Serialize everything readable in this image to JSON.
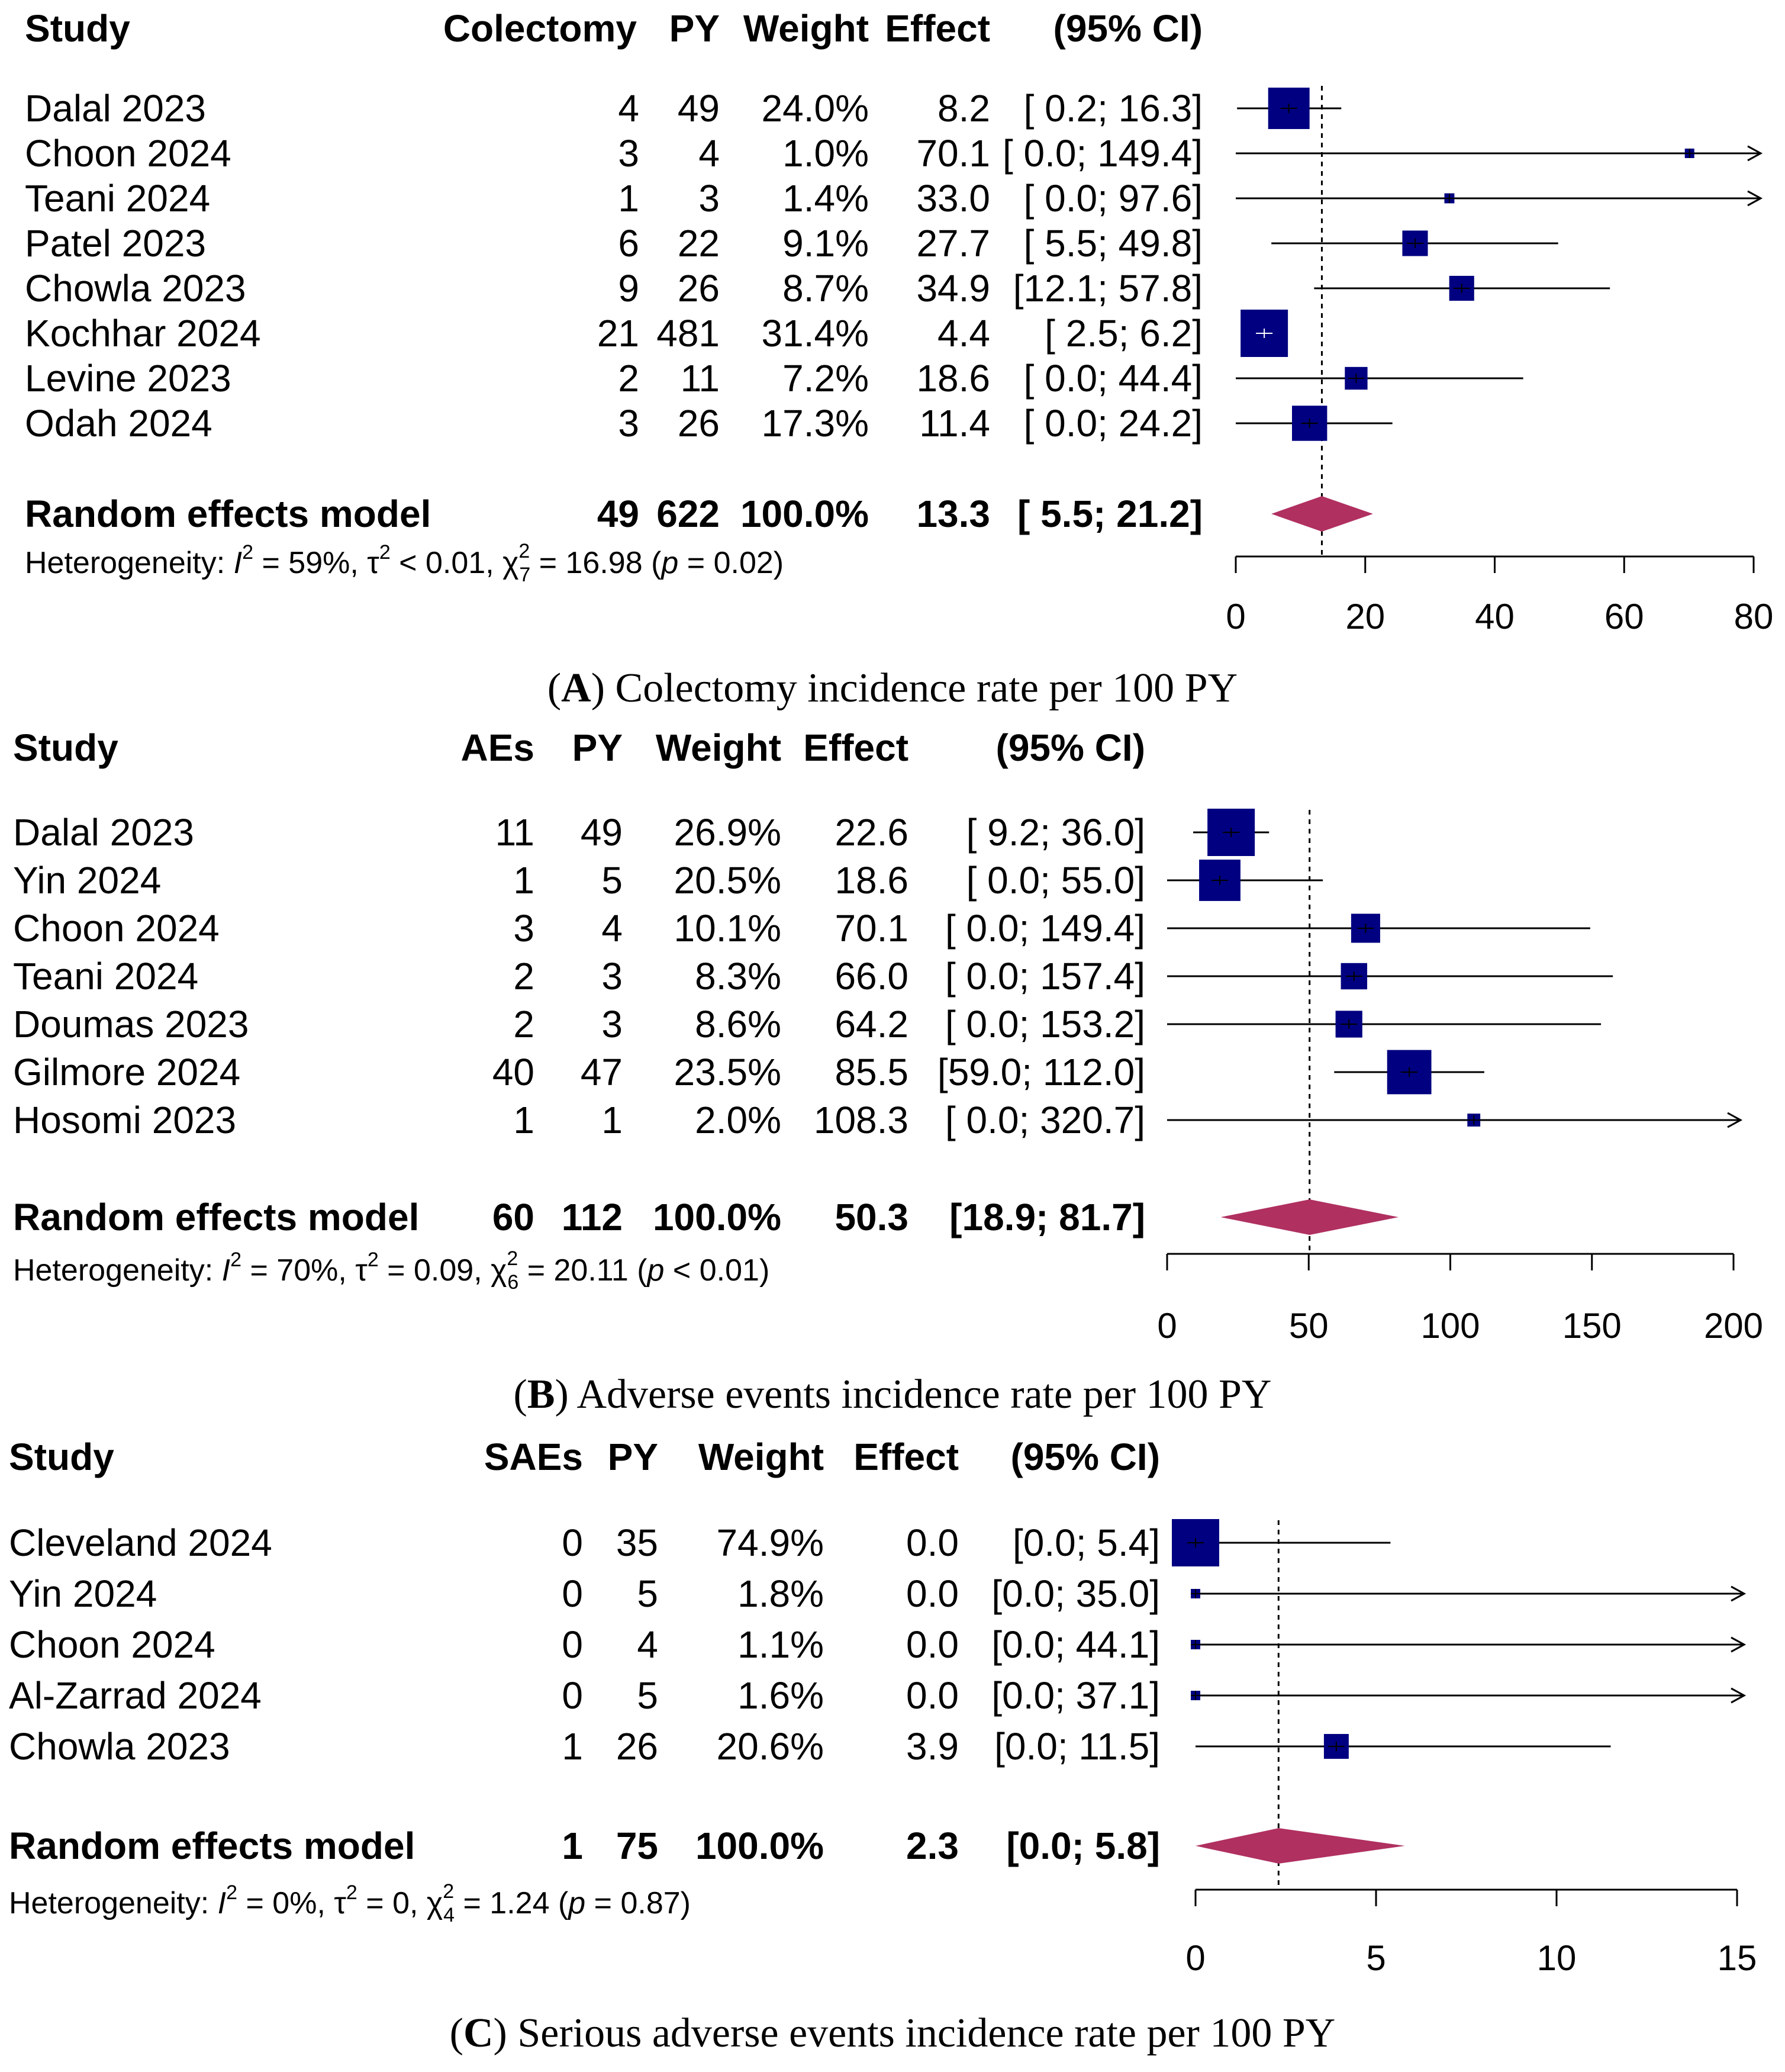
{
  "chart_data": [
    {
      "type": "forest",
      "panel_letter": "A",
      "caption": "Colectomy incidence rate per 100 PY",
      "columns": [
        "Study",
        "Colectomy",
        "PY",
        "Weight",
        "Effect",
        "(95% CI)"
      ],
      "studies": [
        {
          "study": "Dalal 2023",
          "events": "4",
          "py": "49",
          "weight": "24.0%",
          "effect": "8.2",
          "ci": "[ 0.2;  16.3]",
          "est": 8.2,
          "lo": 0.2,
          "hi": 16.3,
          "w": 24.0
        },
        {
          "study": "Choon 2024",
          "events": "3",
          "py": "4",
          "weight": "1.0%",
          "effect": "70.1",
          "ci": "[ 0.0; 149.4]",
          "est": 70.1,
          "lo": 0.0,
          "hi": 149.4,
          "w": 1.0
        },
        {
          "study": "Teani 2024",
          "events": "1",
          "py": "3",
          "weight": "1.4%",
          "effect": "33.0",
          "ci": "[ 0.0;  97.6]",
          "est": 33.0,
          "lo": 0.0,
          "hi": 97.6,
          "w": 1.4
        },
        {
          "study": "Patel 2023",
          "events": "6",
          "py": "22",
          "weight": "9.1%",
          "effect": "27.7",
          "ci": "[ 5.5;  49.8]",
          "est": 27.7,
          "lo": 5.5,
          "hi": 49.8,
          "w": 9.1
        },
        {
          "study": "Chowla 2023",
          "events": "9",
          "py": "26",
          "weight": "8.7%",
          "effect": "34.9",
          "ci": "[12.1;  57.8]",
          "est": 34.9,
          "lo": 12.1,
          "hi": 57.8,
          "w": 8.7
        },
        {
          "study": "Kochhar 2024",
          "events": "21",
          "py": "481",
          "weight": "31.4%",
          "effect": "4.4",
          "ci": "[ 2.5;   6.2]",
          "est": 4.4,
          "lo": 2.5,
          "hi": 6.2,
          "w": 31.4
        },
        {
          "study": "Levine 2023",
          "events": "2",
          "py": "11",
          "weight": "7.2%",
          "effect": "18.6",
          "ci": "[ 0.0;  44.4]",
          "est": 18.6,
          "lo": 0.0,
          "hi": 44.4,
          "w": 7.2
        },
        {
          "study": "Odah 2024",
          "events": "3",
          "py": "26",
          "weight": "17.3%",
          "effect": "11.4",
          "ci": "[ 0.0;  24.2]",
          "est": 11.4,
          "lo": 0.0,
          "hi": 24.2,
          "w": 17.3
        }
      ],
      "pooled": {
        "label": "Random effects model",
        "events": "49",
        "py": "622",
        "weight": "100.0%",
        "effect": "13.3",
        "ci": "[ 5.5;  21.2]",
        "est": 13.3,
        "lo": 5.5,
        "hi": 21.2
      },
      "heterogeneity": {
        "prefix": "Heterogeneity: ",
        "I2": "59%",
        "tau2": "< 0.01",
        "chi_df": "7",
        "chi": "16.98",
        "p": "p = 0.02"
      },
      "xlim": [
        0,
        80
      ],
      "xticks": [
        0,
        20,
        40,
        60,
        80
      ]
    },
    {
      "type": "forest",
      "panel_letter": "B",
      "caption": "Adverse events incidence rate per 100 PY",
      "columns": [
        "Study",
        "AEs",
        "PY",
        "Weight",
        "Effect",
        "(95% CI)"
      ],
      "studies": [
        {
          "study": "Dalal 2023",
          "events": "11",
          "py": "49",
          "weight": "26.9%",
          "effect": "22.6",
          "ci": "[ 9.2;  36.0]",
          "est": 22.6,
          "lo": 9.2,
          "hi": 36.0,
          "w": 26.9
        },
        {
          "study": "Yin 2024",
          "events": "1",
          "py": "5",
          "weight": "20.5%",
          "effect": "18.6",
          "ci": "[ 0.0;  55.0]",
          "est": 18.6,
          "lo": 0.0,
          "hi": 55.0,
          "w": 20.5
        },
        {
          "study": "Choon 2024",
          "events": "3",
          "py": "4",
          "weight": "10.1%",
          "effect": "70.1",
          "ci": "[ 0.0; 149.4]",
          "est": 70.1,
          "lo": 0.0,
          "hi": 149.4,
          "w": 10.1
        },
        {
          "study": "Teani 2024",
          "events": "2",
          "py": "3",
          "weight": "8.3%",
          "effect": "66.0",
          "ci": "[ 0.0; 157.4]",
          "est": 66.0,
          "lo": 0.0,
          "hi": 157.4,
          "w": 8.3
        },
        {
          "study": "Doumas 2023",
          "events": "2",
          "py": "3",
          "weight": "8.6%",
          "effect": "64.2",
          "ci": "[ 0.0; 153.2]",
          "est": 64.2,
          "lo": 0.0,
          "hi": 153.2,
          "w": 8.6
        },
        {
          "study": "Gilmore 2024",
          "events": "40",
          "py": "47",
          "weight": "23.5%",
          "effect": "85.5",
          "ci": "[59.0; 112.0]",
          "est": 85.5,
          "lo": 59.0,
          "hi": 112.0,
          "w": 23.5
        },
        {
          "study": "Hosomi 2023",
          "events": "1",
          "py": "1",
          "weight": "2.0%",
          "effect": "108.3",
          "ci": "[ 0.0; 320.7]",
          "est": 108.3,
          "lo": 0.0,
          "hi": 320.7,
          "w": 2.0
        }
      ],
      "pooled": {
        "label": "Random effects model",
        "events": "60",
        "py": "112",
        "weight": "100.0%",
        "effect": "50.3",
        "ci": "[18.9;  81.7]",
        "est": 50.3,
        "lo": 18.9,
        "hi": 81.7
      },
      "heterogeneity": {
        "prefix": "Heterogeneity: ",
        "I2": "70%",
        "tau2": "= 0.09",
        "chi_df": "6",
        "chi": "20.11",
        "p": "p < 0.01"
      },
      "xlim": [
        0,
        200
      ],
      "xticks": [
        0,
        50,
        100,
        150,
        200
      ]
    },
    {
      "type": "forest",
      "panel_letter": "C",
      "caption": "Serious adverse events incidence rate per 100 PY",
      "columns": [
        "Study",
        "SAEs",
        "PY",
        "Weight",
        "Effect",
        "(95% CI)"
      ],
      "studies": [
        {
          "study": "Cleveland 2024",
          "events": "0",
          "py": "35",
          "weight": "74.9%",
          "effect": "0.0",
          "ci": "[0.0;  5.4]",
          "est": 0.0,
          "lo": 0.0,
          "hi": 5.4,
          "w": 74.9
        },
        {
          "study": "Yin 2024",
          "events": "0",
          "py": "5",
          "weight": "1.8%",
          "effect": "0.0",
          "ci": "[0.0; 35.0]",
          "est": 0.0,
          "lo": 0.0,
          "hi": 35.0,
          "w": 1.8
        },
        {
          "study": "Choon 2024",
          "events": "0",
          "py": "4",
          "weight": "1.1%",
          "effect": "0.0",
          "ci": "[0.0; 44.1]",
          "est": 0.0,
          "lo": 0.0,
          "hi": 44.1,
          "w": 1.1
        },
        {
          "study": "Al-Zarrad 2024",
          "events": "0",
          "py": "5",
          "weight": "1.6%",
          "effect": "0.0",
          "ci": "[0.0; 37.1]",
          "est": 0.0,
          "lo": 0.0,
          "hi": 37.1,
          "w": 1.6
        },
        {
          "study": "Chowla 2023",
          "events": "1",
          "py": "26",
          "weight": "20.6%",
          "effect": "3.9",
          "ci": "[0.0; 11.5]",
          "est": 3.9,
          "lo": 0.0,
          "hi": 11.5,
          "w": 20.6
        }
      ],
      "pooled": {
        "label": "Random effects model",
        "events": "1",
        "py": "75",
        "weight": "100.0%",
        "effect": "2.3",
        "ci": "[0.0;  5.8]",
        "est": 2.3,
        "lo": 0.0,
        "hi": 5.8
      },
      "heterogeneity": {
        "prefix": "Heterogeneity: ",
        "I2": "0%",
        "tau2": "= 0",
        "chi_df": "4",
        "chi": "1.24",
        "p": "p = 0.87"
      },
      "xlim": [
        0,
        15
      ],
      "xticks": [
        0,
        5,
        10,
        15
      ]
    }
  ],
  "colors": {
    "square": "#000080",
    "diamond": "#B03060",
    "line": "#000000"
  }
}
